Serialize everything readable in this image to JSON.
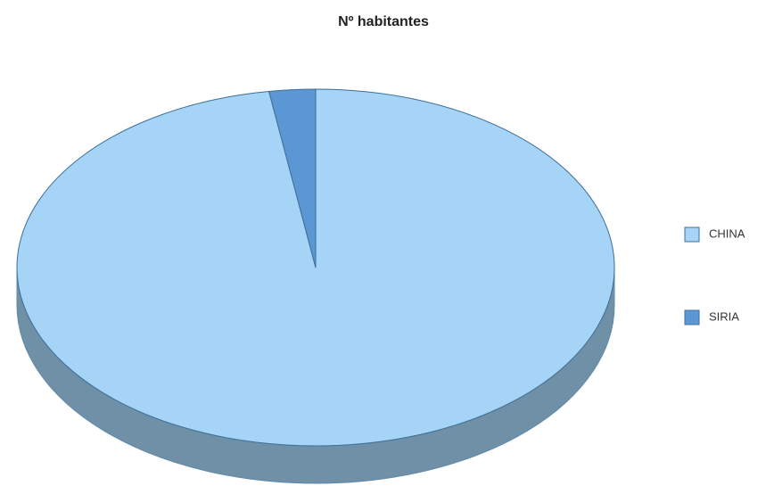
{
  "chart_data": {
    "type": "pie",
    "title": "Nº habitantes",
    "categories": [
      "CHINA",
      "SIRIA"
    ],
    "values": [
      97.5,
      2.5
    ],
    "colors": [
      "#a5d4f7",
      "#5b97d5"
    ],
    "legend": "right"
  }
}
